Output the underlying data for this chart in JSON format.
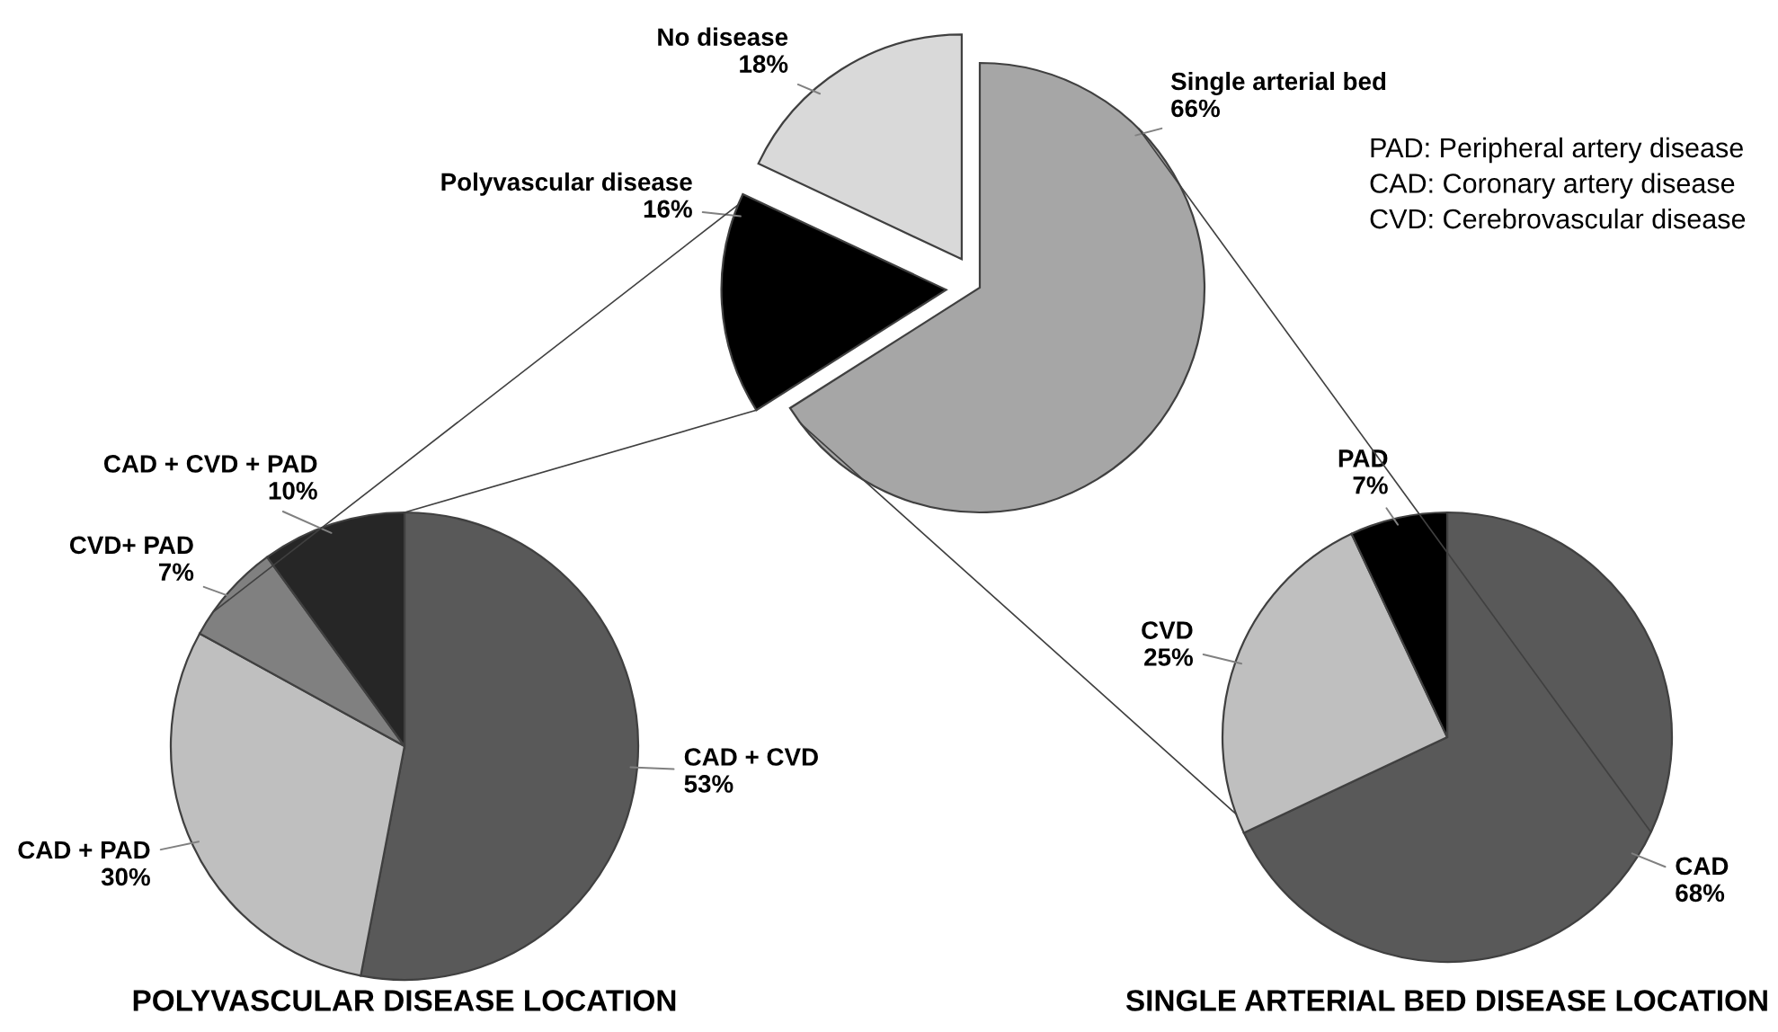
{
  "chart_data": [
    {
      "type": "pie",
      "categories": [
        "Single arterial bed",
        "Polyvascular disease",
        "No disease"
      ],
      "values": [
        66,
        16,
        18
      ],
      "value_labels": [
        "66%",
        "16%",
        "18%"
      ],
      "colors": [
        "#a6a6a6",
        "#000000",
        "#d9d9d9"
      ],
      "annotations": [
        "PAD: Peripheral artery disease",
        "CAD: Coronary artery disease",
        "CVD: Cerebrovascular disease"
      ]
    },
    {
      "type": "pie",
      "title": "POLYVASCULAR DISEASE LOCATION",
      "categories": [
        "CAD + CVD",
        "CAD + PAD",
        "CVD+ PAD",
        "CAD + CVD + PAD"
      ],
      "values": [
        53,
        30,
        7,
        10
      ],
      "value_labels": [
        "53%",
        "30%",
        "7%",
        "10%"
      ],
      "colors": [
        "#595959",
        "#bfbfbf",
        "#808080",
        "#262626"
      ]
    },
    {
      "type": "pie",
      "title": "SINGLE ARTERIAL BED DISEASE LOCATION",
      "categories": [
        "CAD",
        "CVD",
        "PAD"
      ],
      "values": [
        68,
        25,
        7
      ],
      "value_labels": [
        "68%",
        "25%",
        "7%"
      ],
      "colors": [
        "#595959",
        "#bfbfbf",
        "#000000"
      ]
    }
  ]
}
